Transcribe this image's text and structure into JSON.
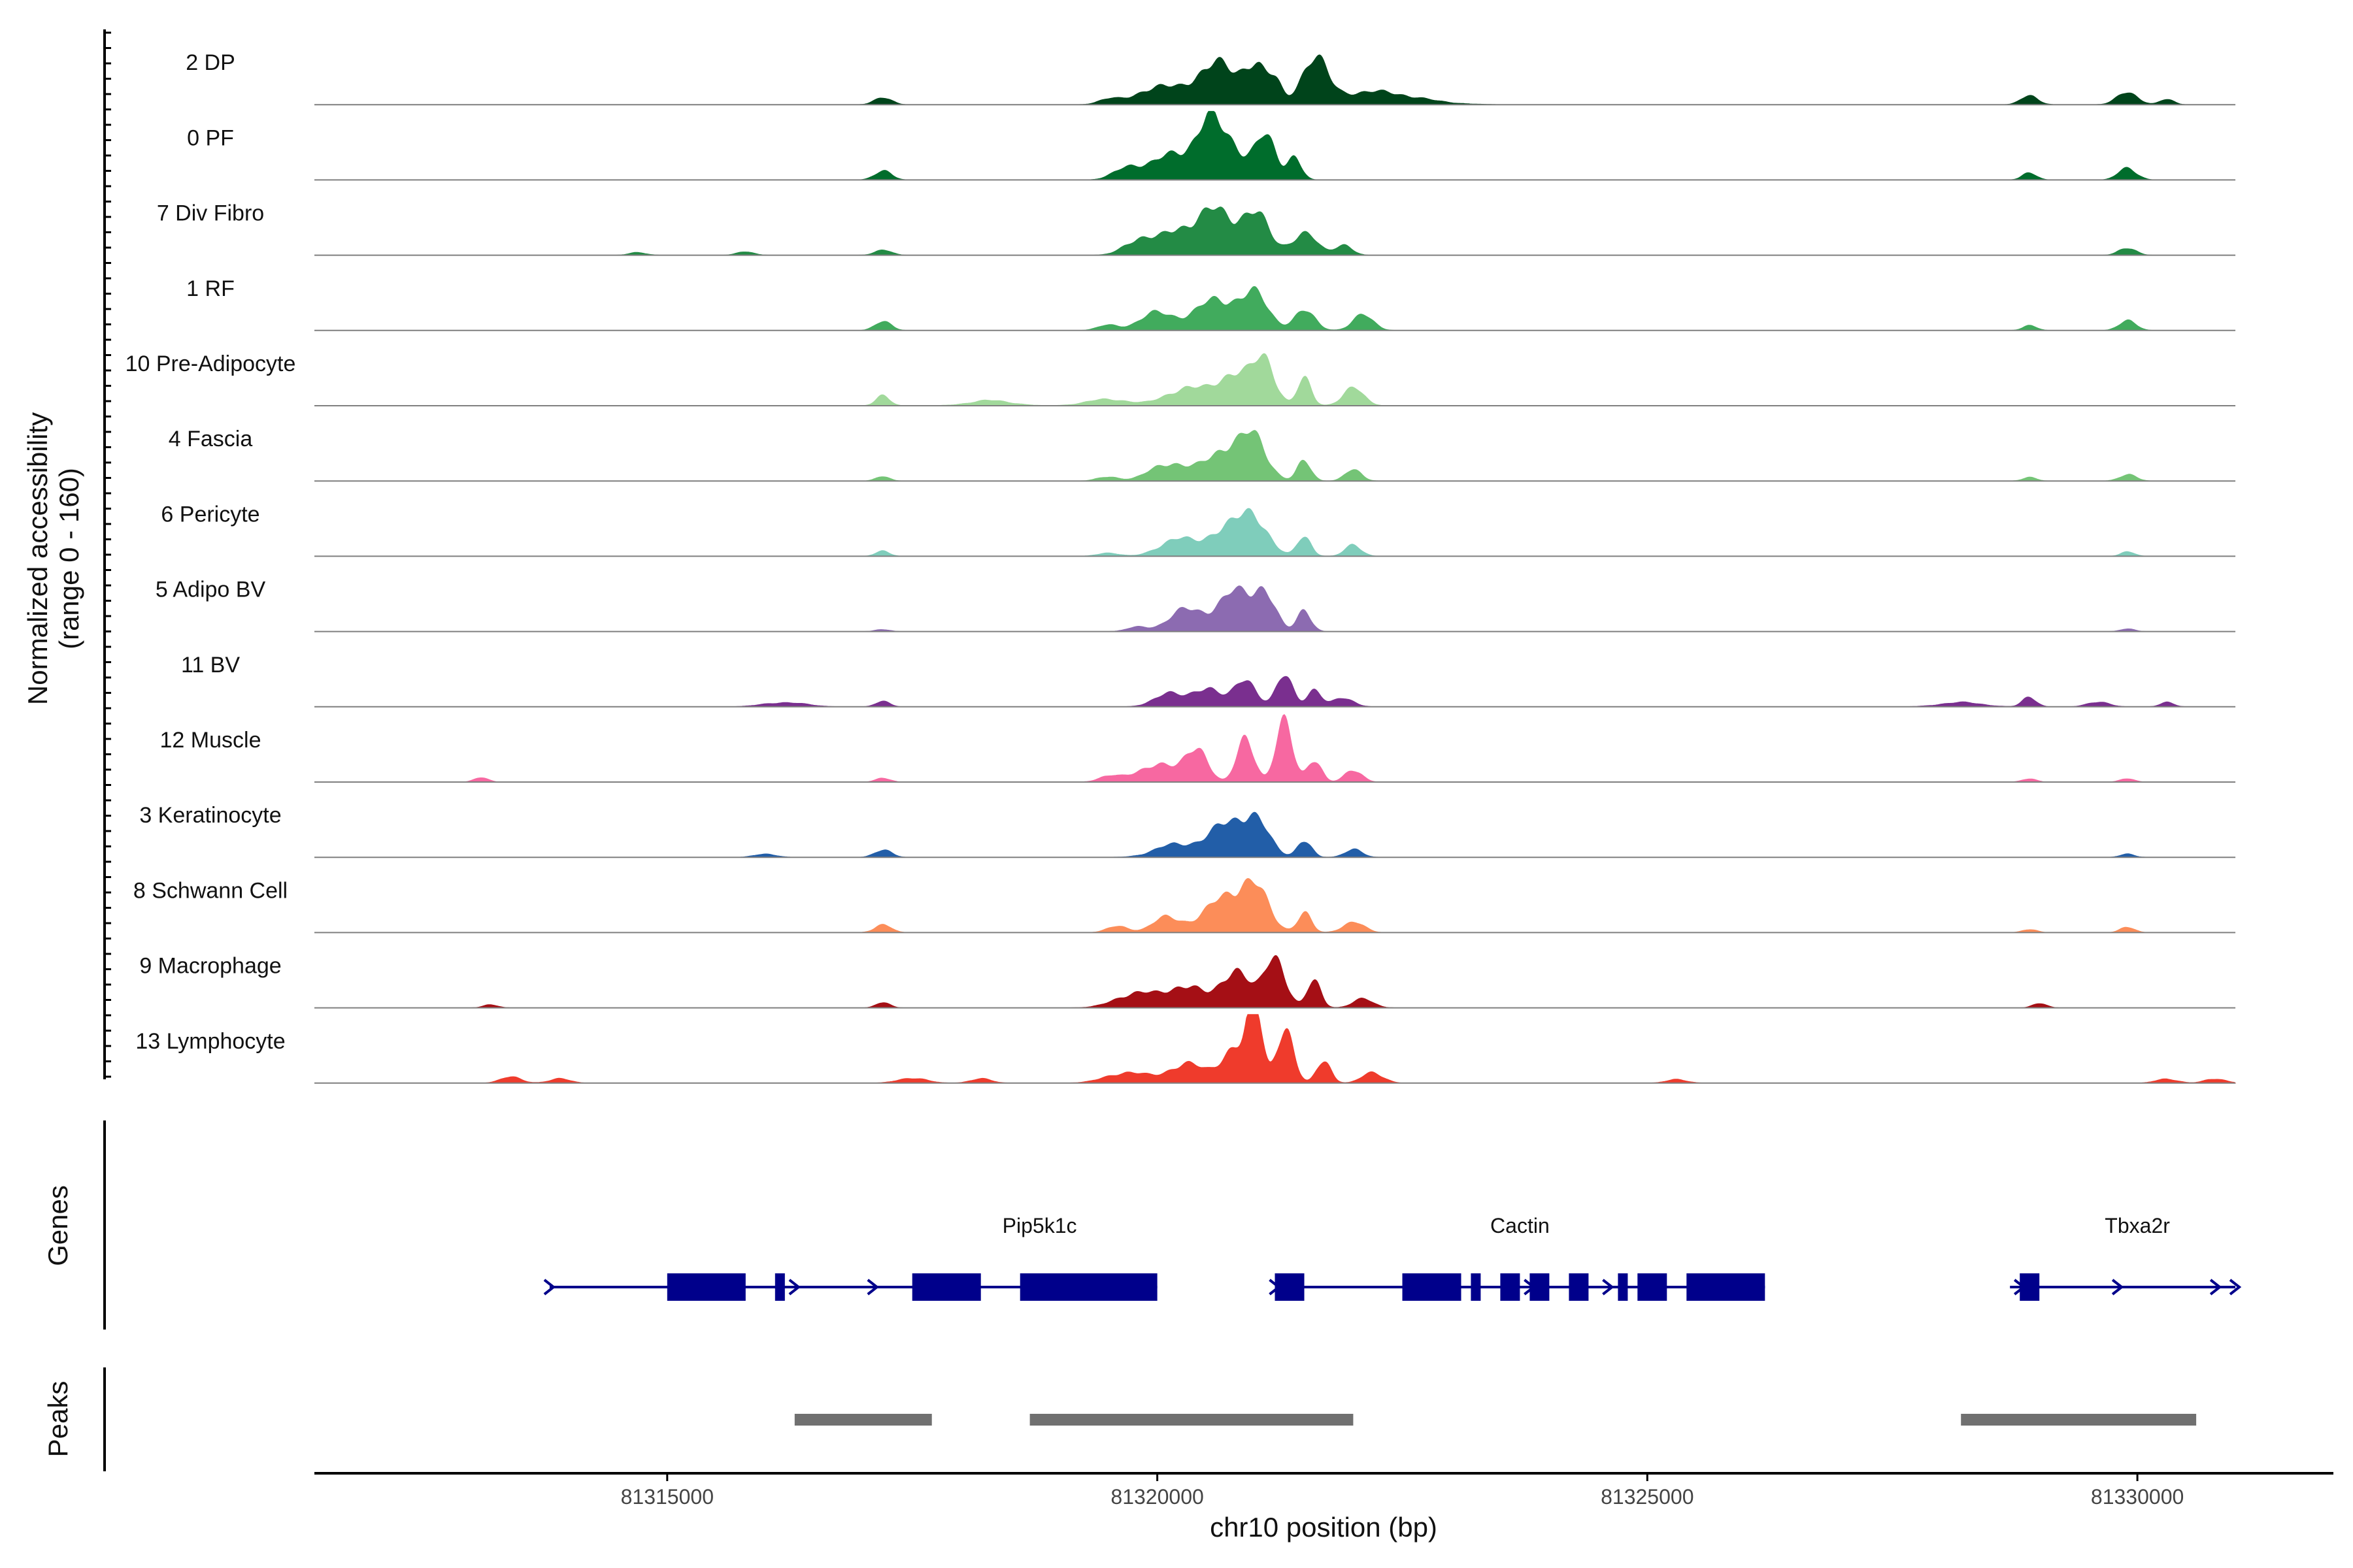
{
  "chart_data": {
    "type": "area",
    "x_label": "chr10 position (bp)",
    "y_label": "Normalized accessibility",
    "y_sublabel": "(range 0 - 160)",
    "y_range": [
      0,
      160
    ],
    "x_range": [
      81311400,
      81332000
    ],
    "x_ticks": [
      {
        "value": 81315000,
        "label": "81315000"
      },
      {
        "value": 81320000,
        "label": "81320000"
      },
      {
        "value": 81325000,
        "label": "81325000"
      },
      {
        "value": 81330000,
        "label": "81330000"
      }
    ],
    "coverage_x_range": [
      81311400,
      81331000
    ],
    "tracks": [
      {
        "name": "2 DP",
        "color": "#00441b",
        "peaks": [
          [
            81322200,
            30,
            600
          ],
          [
            81321600,
            100,
            180
          ],
          [
            81320000,
            40,
            300
          ],
          [
            81320600,
            95,
            300
          ],
          [
            81321000,
            85,
            150
          ],
          [
            81321200,
            45,
            100
          ],
          [
            81319500,
            12,
            150
          ],
          [
            81317200,
            18,
            120
          ],
          [
            81328900,
            22,
            120
          ],
          [
            81329900,
            28,
            150
          ],
          [
            81330300,
            12,
            100
          ]
        ]
      },
      {
        "name": "0 PF",
        "color": "#006d2c",
        "peaks": [
          [
            81320200,
            60,
            350
          ],
          [
            81320700,
            88,
            250
          ],
          [
            81321100,
            95,
            150
          ],
          [
            81321400,
            55,
            100
          ],
          [
            81320500,
            70,
            150
          ],
          [
            81319700,
            25,
            200
          ],
          [
            81317200,
            22,
            120
          ],
          [
            81329900,
            28,
            130
          ],
          [
            81328900,
            18,
            100
          ]
        ]
      },
      {
        "name": "7 Div Fibro",
        "color": "#238b45",
        "peaks": [
          [
            81319800,
            35,
            200
          ],
          [
            81320200,
            55,
            250
          ],
          [
            81320600,
            100,
            250
          ],
          [
            81321000,
            92,
            200
          ],
          [
            81321500,
            50,
            180
          ],
          [
            81321900,
            25,
            120
          ],
          [
            81317200,
            12,
            120
          ],
          [
            81329900,
            18,
            120
          ],
          [
            81315800,
            8,
            120
          ],
          [
            81314700,
            6,
            120
          ]
        ]
      },
      {
        "name": "1 RF",
        "color": "#41ab5d",
        "peaks": [
          [
            81320000,
            40,
            250
          ],
          [
            81320600,
            70,
            300
          ],
          [
            81321000,
            75,
            200
          ],
          [
            81321500,
            45,
            150
          ],
          [
            81322100,
            35,
            150
          ],
          [
            81319500,
            12,
            150
          ],
          [
            81317200,
            20,
            120
          ],
          [
            81329900,
            25,
            120
          ],
          [
            81328900,
            12,
            100
          ]
        ]
      },
      {
        "name": "10 Pre-Adipocyte",
        "color": "#a1d99b",
        "peaks": [
          [
            81320300,
            40,
            300
          ],
          [
            81320800,
            75,
            250
          ],
          [
            81321100,
            95,
            150
          ],
          [
            81321500,
            60,
            100
          ],
          [
            81322000,
            40,
            150
          ],
          [
            81319500,
            15,
            300
          ],
          [
            81318300,
            12,
            300
          ],
          [
            81317200,
            22,
            100
          ]
        ]
      },
      {
        "name": "4 Fascia",
        "color": "#74c476",
        "peaks": [
          [
            81320100,
            40,
            250
          ],
          [
            81320700,
            75,
            300
          ],
          [
            81321000,
            80,
            180
          ],
          [
            81321500,
            45,
            100
          ],
          [
            81322000,
            25,
            120
          ],
          [
            81319500,
            10,
            150
          ],
          [
            81317200,
            10,
            100
          ],
          [
            81329900,
            15,
            120
          ],
          [
            81328900,
            8,
            100
          ]
        ]
      },
      {
        "name": "6 Pericyte",
        "color": "#7fcdbb",
        "peaks": [
          [
            81320200,
            40,
            250
          ],
          [
            81320700,
            65,
            250
          ],
          [
            81321000,
            80,
            200
          ],
          [
            81321500,
            45,
            100
          ],
          [
            81322000,
            25,
            120
          ],
          [
            81319500,
            8,
            150
          ],
          [
            81317200,
            12,
            100
          ],
          [
            81329900,
            10,
            100
          ]
        ]
      },
      {
        "name": "5 Adipo BV",
        "color": "#8c6bb1",
        "peaks": [
          [
            81320300,
            50,
            250
          ],
          [
            81320800,
            90,
            250
          ],
          [
            81321100,
            80,
            150
          ],
          [
            81321500,
            50,
            100
          ],
          [
            81319800,
            10,
            150
          ],
          [
            81317200,
            5,
            100
          ],
          [
            81329900,
            6,
            100
          ]
        ]
      },
      {
        "name": "11 BV",
        "color": "#7a2f8f",
        "peaks": [
          [
            81320100,
            30,
            200
          ],
          [
            81320500,
            45,
            200
          ],
          [
            81320900,
            65,
            150
          ],
          [
            81321300,
            70,
            120
          ],
          [
            81321600,
            40,
            100
          ],
          [
            81321900,
            20,
            150
          ],
          [
            81317200,
            14,
            100
          ],
          [
            81328900,
            22,
            100
          ],
          [
            81329600,
            12,
            150
          ],
          [
            81330300,
            10,
            100
          ],
          [
            81316200,
            10,
            300
          ],
          [
            81328200,
            10,
            300
          ]
        ]
      },
      {
        "name": "12 Muscle",
        "color": "#f768a1",
        "peaks": [
          [
            81320000,
            40,
            300
          ],
          [
            81320400,
            80,
            150
          ],
          [
            81320900,
            110,
            120
          ],
          [
            81321300,
            140,
            120
          ],
          [
            81321600,
            50,
            100
          ],
          [
            81322000,
            30,
            120
          ],
          [
            81319500,
            12,
            150
          ],
          [
            81317200,
            10,
            100
          ],
          [
            81313100,
            10,
            100
          ],
          [
            81329900,
            8,
            100
          ],
          [
            81328900,
            8,
            100
          ]
        ]
      },
      {
        "name": "3 Keratinocyte",
        "color": "#225ea8",
        "peaks": [
          [
            81320200,
            30,
            300
          ],
          [
            81320700,
            70,
            250
          ],
          [
            81321000,
            80,
            200
          ],
          [
            81321500,
            40,
            100
          ],
          [
            81322000,
            20,
            120
          ],
          [
            81317200,
            18,
            120
          ],
          [
            81316000,
            8,
            150
          ],
          [
            81329900,
            8,
            100
          ]
        ]
      },
      {
        "name": "8 Schwann Cell",
        "color": "#fc8d59",
        "peaks": [
          [
            81320100,
            35,
            200
          ],
          [
            81320700,
            80,
            300
          ],
          [
            81321000,
            85,
            200
          ],
          [
            81321500,
            45,
            100
          ],
          [
            81322000,
            25,
            150
          ],
          [
            81319600,
            15,
            150
          ],
          [
            81317200,
            18,
            120
          ],
          [
            81329900,
            14,
            100
          ],
          [
            81328900,
            8,
            100
          ]
        ]
      },
      {
        "name": "9 Macrophage",
        "color": "#a50f15",
        "peaks": [
          [
            81319800,
            35,
            300
          ],
          [
            81320300,
            50,
            250
          ],
          [
            81320800,
            90,
            200
          ],
          [
            81321200,
            120,
            150
          ],
          [
            81321600,
            60,
            100
          ],
          [
            81322100,
            20,
            150
          ],
          [
            81317200,
            12,
            100
          ],
          [
            81313200,
            8,
            100
          ],
          [
            81329000,
            10,
            100
          ]
        ]
      },
      {
        "name": "13 Lymphocyte",
        "color": "#ef3b2c",
        "peaks": [
          [
            81319700,
            25,
            300
          ],
          [
            81320300,
            45,
            250
          ],
          [
            81320800,
            85,
            200
          ],
          [
            81321000,
            160,
            100
          ],
          [
            81321300,
            130,
            120
          ],
          [
            81321700,
            55,
            100
          ],
          [
            81322200,
            25,
            150
          ],
          [
            81313400,
            14,
            150
          ],
          [
            81313900,
            10,
            150
          ],
          [
            81317500,
            12,
            200
          ],
          [
            81318200,
            10,
            150
          ],
          [
            81325300,
            8,
            150
          ],
          [
            81330300,
            10,
            150
          ],
          [
            81330800,
            10,
            150
          ]
        ]
      }
    ],
    "genes_track_label": "Genes",
    "peaks_track_label": "Peaks",
    "genes": [
      {
        "name": "Pip5k1c",
        "label_x": 81318800,
        "start": 81313800,
        "end": 81320000,
        "arrows": [
          81313800,
          81316300,
          81317100
        ],
        "exons": [
          [
            81315000,
            81315800
          ],
          [
            81316100,
            81316200
          ],
          [
            81317500,
            81318200
          ],
          [
            81318600,
            81320000
          ]
        ]
      },
      {
        "name": "Cactin",
        "label_x": 81323700,
        "start": 81321200,
        "end": 81326200,
        "arrows": [
          81321200,
          81322800,
          81323800,
          81324600,
          81325000
        ],
        "exons": [
          [
            81321200,
            81321500
          ],
          [
            81322500,
            81323100
          ],
          [
            81323200,
            81323300
          ],
          [
            81323500,
            81323700
          ],
          [
            81323800,
            81324000
          ],
          [
            81324200,
            81324400
          ],
          [
            81324700,
            81324800
          ],
          [
            81324900,
            81325200
          ],
          [
            81325400,
            81326200
          ]
        ]
      },
      {
        "name": "Tbxa2r",
        "label_x": 81330000,
        "start": 81328700,
        "end": 81331000,
        "arrows": [
          81328800,
          81329800,
          81330800,
          81331000
        ],
        "exons": [
          [
            81328800,
            81329000
          ]
        ]
      }
    ],
    "peaks": [
      [
        81316300,
        81317700
      ],
      [
        81318700,
        81322000
      ],
      [
        81328200,
        81330600
      ]
    ]
  }
}
